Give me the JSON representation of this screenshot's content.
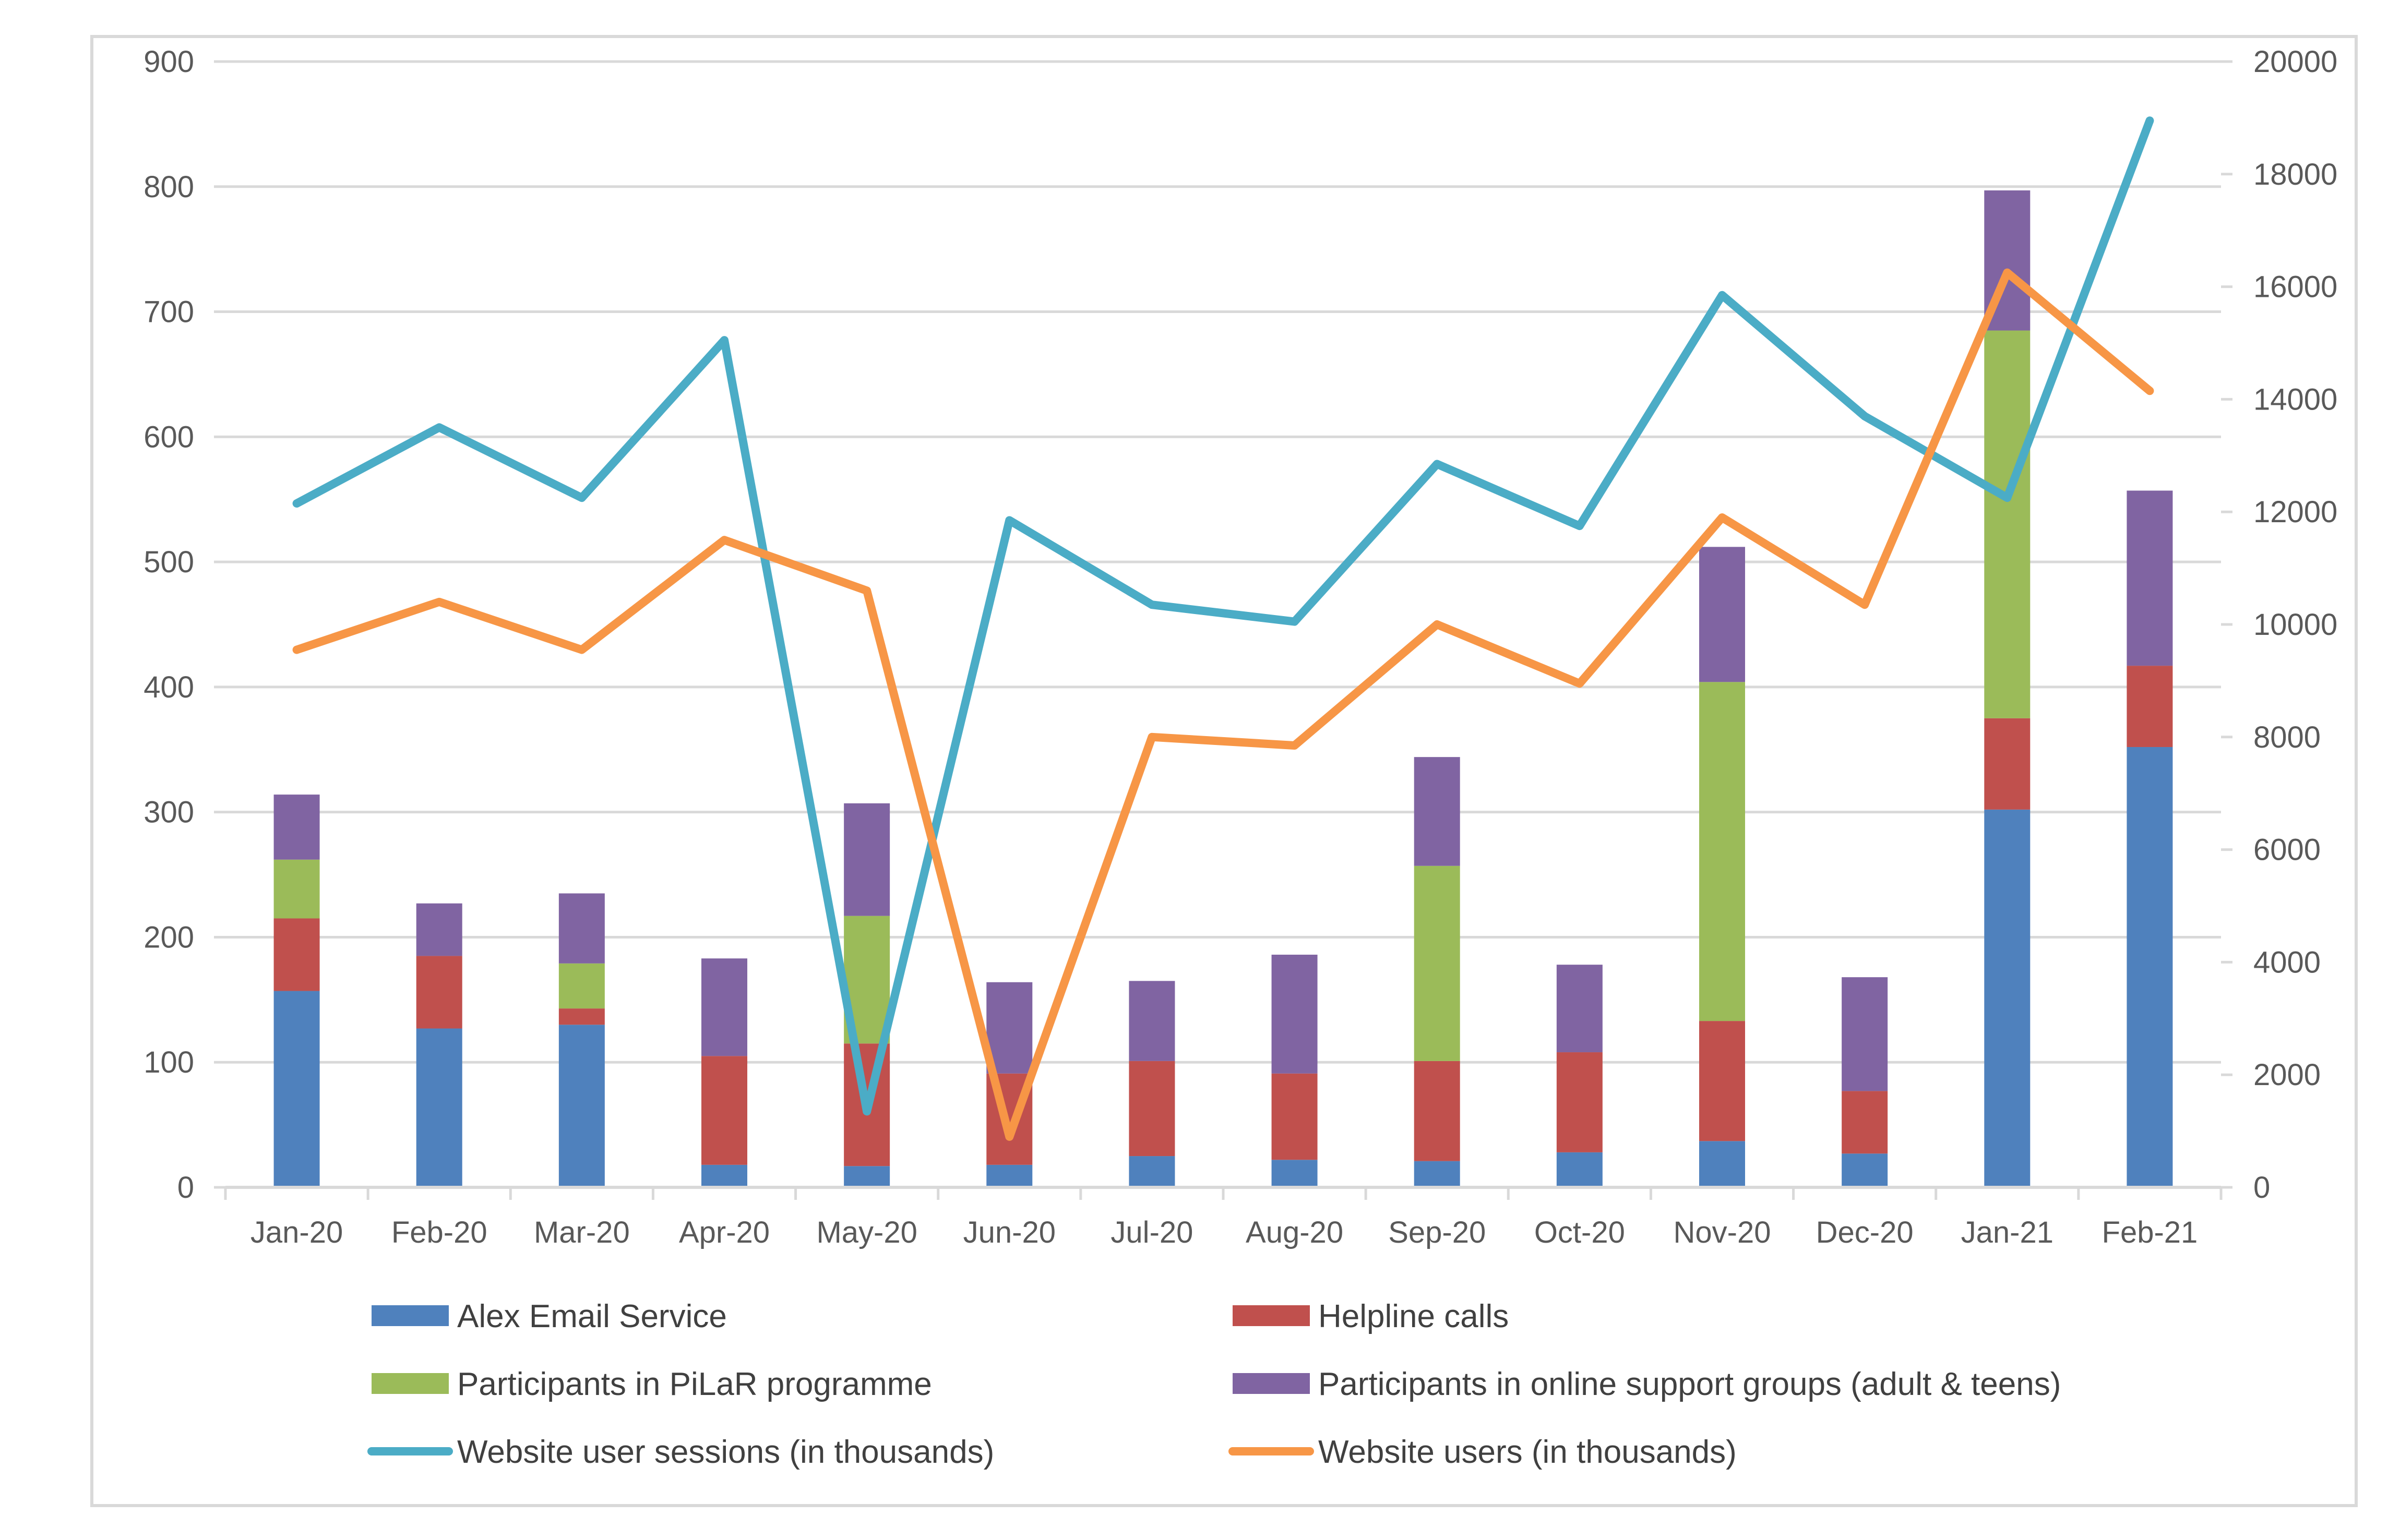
{
  "chart_data": {
    "type": "bar",
    "stacked": true,
    "categories": [
      "Jan-20",
      "Feb-20",
      "Mar-20",
      "Apr-20",
      "May-20",
      "Jun-20",
      "Jul-20",
      "Aug-20",
      "Sep-20",
      "Oct-20",
      "Nov-20",
      "Dec-20",
      "Jan-21",
      "Feb-21"
    ],
    "y_left": {
      "min": 0,
      "max": 900,
      "step": 100,
      "ticks": [
        "0",
        "100",
        "200",
        "300",
        "400",
        "500",
        "600",
        "700",
        "800",
        "900"
      ]
    },
    "y_right": {
      "min": 0,
      "max": 20000,
      "step": 2000,
      "ticks": [
        "0",
        "2000",
        "4000",
        "6000",
        "8000",
        "10000",
        "12000",
        "14000",
        "16000",
        "18000",
        "20000"
      ]
    },
    "grid": true,
    "legend_position": "bottom",
    "series": [
      {
        "name": "Alex Email Service",
        "kind": "bar",
        "axis": "left",
        "color": "#4F81BD",
        "values": [
          157,
          127,
          130,
          18,
          17,
          18,
          25,
          22,
          21,
          28,
          37,
          27,
          302,
          352
        ]
      },
      {
        "name": "Helpline calls",
        "kind": "bar",
        "axis": "left",
        "color": "#C0504D",
        "values": [
          58,
          58,
          13,
          87,
          98,
          73,
          76,
          69,
          80,
          80,
          96,
          50,
          73,
          65
        ]
      },
      {
        "name": "Participants in PiLaR programme",
        "kind": "bar",
        "axis": "left",
        "color": "#9BBB59",
        "values": [
          47,
          0,
          36,
          0,
          102,
          0,
          0,
          0,
          156,
          0,
          271,
          0,
          310,
          0
        ]
      },
      {
        "name": "Participants in online support groups (adult & teens)",
        "kind": "bar",
        "axis": "left",
        "color": "#8064A2",
        "values": [
          52,
          42,
          56,
          78,
          90,
          73,
          64,
          95,
          87,
          70,
          108,
          91,
          112,
          140
        ]
      },
      {
        "name": "Website user sessions (in thousands)",
        "kind": "line",
        "axis": "right",
        "color": "#4BACC6",
        "values": [
          12150,
          13500,
          12250,
          15050,
          1350,
          11850,
          10350,
          10050,
          12850,
          11750,
          15850,
          13700,
          12250,
          18950
        ]
      },
      {
        "name": "Website users (in thousands)",
        "kind": "line",
        "axis": "right",
        "color": "#F79646",
        "values": [
          9550,
          10400,
          9550,
          11500,
          10600,
          900,
          8000,
          7850,
          10000,
          8950,
          11900,
          10350,
          16250,
          14150
        ]
      }
    ]
  }
}
